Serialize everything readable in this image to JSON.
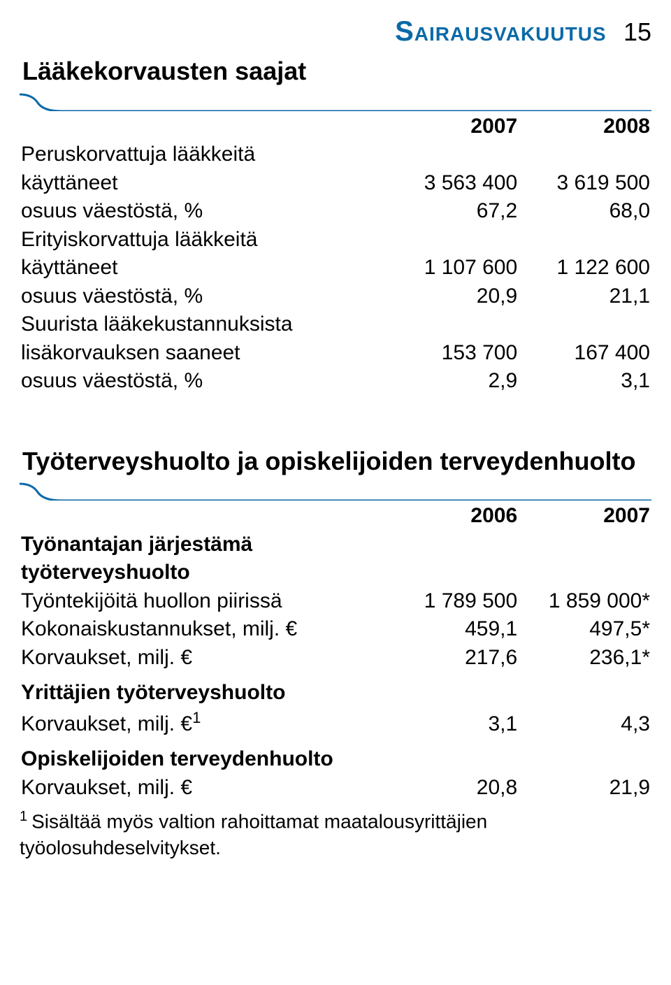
{
  "header": {
    "title": "Sairausvakuutus",
    "title_color": "#0a6aa8",
    "page_number": "15"
  },
  "swoosh_color": "#0a6aa8",
  "table1": {
    "title": "Lääkekorvausten saajat",
    "years": [
      "2007",
      "2008"
    ],
    "rows": [
      {
        "label": "Peruskorvattuja lääkkeitä",
        "vals": [
          "",
          ""
        ],
        "indent": 0
      },
      {
        "label": "käyttäneet",
        "vals": [
          "3 563 400",
          "3 619 500"
        ],
        "indent": 1
      },
      {
        "label": "osuus väestöstä, %",
        "vals": [
          "67,2",
          "68,0"
        ],
        "indent": 2
      },
      {
        "label": "Erityiskorvattuja lääkkeitä",
        "vals": [
          "",
          ""
        ],
        "indent": 0
      },
      {
        "label": "käyttäneet",
        "vals": [
          "1 107 600",
          "1 122 600"
        ],
        "indent": 1
      },
      {
        "label": "osuus väestöstä, %",
        "vals": [
          "20,9",
          "21,1"
        ],
        "indent": 2
      },
      {
        "label": "Suurista lääkekustannuksista",
        "vals": [
          "",
          ""
        ],
        "indent": 0
      },
      {
        "label": "lisäkorvauksen saaneet",
        "vals": [
          "153 700",
          "167 400"
        ],
        "indent": 1
      },
      {
        "label": "osuus väestöstä, %",
        "vals": [
          "2,9",
          "3,1"
        ],
        "indent": 2
      }
    ]
  },
  "table2": {
    "title": "Työterveyshuolto ja opiskelijoiden terveydenhuolto",
    "years": [
      "2006",
      "2007"
    ],
    "groups": [
      {
        "heading": "Työnantajan järjestämä työterveyshuolto",
        "heading_line2": "",
        "rows": [
          {
            "label": "Työntekijöitä huollon piirissä",
            "vals": [
              "1 789 500",
              "1 859 000*"
            ],
            "indent": 0
          },
          {
            "label": "Kokonaiskustannukset, milj. €",
            "vals": [
              "459,1",
              "497,5*"
            ],
            "indent": 0
          },
          {
            "label": "Korvaukset, milj. €",
            "vals": [
              "217,6",
              "236,1*"
            ],
            "indent": 0
          }
        ]
      },
      {
        "heading": "Yrittäjien työterveyshuolto",
        "rows": [
          {
            "label": "Korvaukset, milj. €¹",
            "vals": [
              "3,1",
              "4,3"
            ],
            "indent": 0,
            "sup": "1",
            "label_raw": "Korvaukset, milj. €"
          }
        ]
      },
      {
        "heading": "Opiskelijoiden terveydenhuolto",
        "rows": [
          {
            "label": "Korvaukset, milj. €",
            "vals": [
              "20,8",
              "21,9"
            ],
            "indent": 0
          }
        ]
      }
    ]
  },
  "footnote": {
    "marker": "1",
    "text": "Sisältää myös valtion rahoittamat maatalousyrittäjien työolosuhdeselvitykset."
  }
}
